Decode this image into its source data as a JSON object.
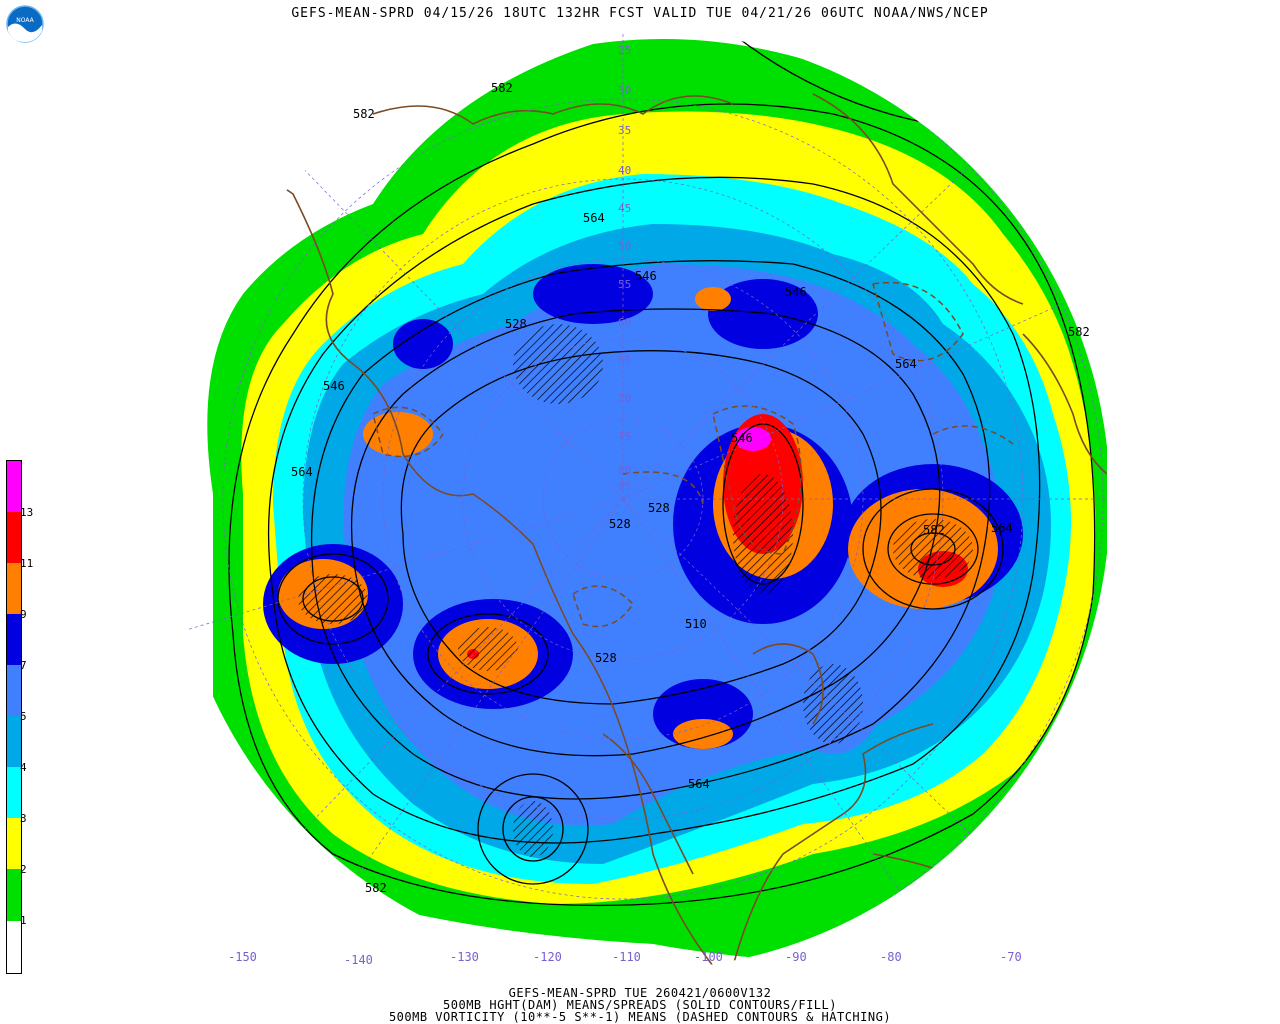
{
  "title": "GEFS-MEAN-SPRD 04/15/26 18UTC 132HR FCST VALID TUE 04/21/26 06UTC NOAA/NWS/NCEP",
  "logo_text": "NOAA",
  "footer": {
    "line1": "GEFS-MEAN-SPRD TUE 260421/0600V132",
    "line2": "500MB HGHT(DAM) MEANS/SPREADS (SOLID CONTOURS/FILL)",
    "line3": "500MB VORTICITY (10**-5 S**-1) MEANS (DASHED CONTOURS & HATCHING)"
  },
  "legend": {
    "labels": [
      "1",
      "2",
      "3",
      "4",
      "5",
      "7",
      "9",
      "11",
      "13"
    ],
    "colors": [
      "#ffffff",
      "#00e000",
      "#ffff00",
      "#00ffff",
      "#00a8e8",
      "#4080ff",
      "#0000e0",
      "#ff8000",
      "#ff0000",
      "#ff00ff"
    ]
  },
  "longitude_labels": [
    "-150",
    "-140",
    "-130",
    "-120",
    "-110",
    "-100",
    "-90",
    "-80",
    "-70"
  ],
  "latitude_labels": [
    "25",
    "30",
    "35",
    "40",
    "45",
    "50",
    "55",
    "60",
    "65",
    "70",
    "75",
    "80",
    "85"
  ],
  "contour_labels": [
    "582",
    "582",
    "564",
    "546",
    "528",
    "564",
    "582",
    "546",
    "564",
    "546",
    "528",
    "528",
    "510",
    "528",
    "564",
    "564",
    "546",
    "582",
    "582"
  ],
  "colors": {
    "coast": "#7a4a25",
    "contour": "#000000",
    "grid": "#7a5fd0"
  }
}
